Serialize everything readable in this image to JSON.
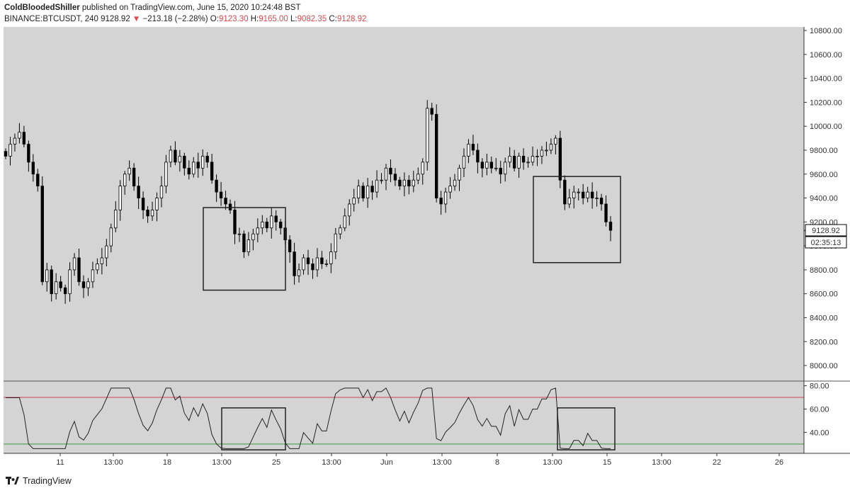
{
  "header": {
    "author": "ColdBloodedShiller",
    "published": "published on TradingView.com, June 15, 2020 10:24:48 BST",
    "symbol": "BINANCE:BTCUSDT, 240",
    "last": "9128.92",
    "change_arrow": "▼",
    "change": "−213.18 (−2.28%)",
    "open_label": "O:",
    "open": "9123.30",
    "high_label": "H:",
    "high": "9165.00",
    "low_label": "L:",
    "low": "9082.35",
    "close_label": "C:",
    "close": "9128.92"
  },
  "price_tag": {
    "price": "9128.92",
    "countdown": "02:35:13"
  },
  "footer": {
    "brand": "TradingView",
    "logo_icon": "tradingview-logo-icon"
  },
  "colors": {
    "background": "#d4d4d4",
    "candle": "#000000",
    "upper_band": "#d0405a",
    "lower_band": "#3a9a3a"
  },
  "chart_data": [
    {
      "type": "candlestick",
      "title": "BINANCE:BTCUSDT, 240",
      "y_ticks": [
        "8000.00",
        "8200.00",
        "8400.00",
        "8600.00",
        "8800.00",
        "9000.00",
        "9200.00",
        "9400.00",
        "9600.00",
        "9800.00",
        "10000.00",
        "10200.00",
        "10400.00",
        "10600.00",
        "10800.00"
      ],
      "ylim": [
        7870,
        10830
      ],
      "x_labels": [
        "11",
        "13:00",
        "18",
        "13:00",
        "25",
        "13:00",
        "Jun",
        "13:00",
        "8",
        "13:00",
        "15",
        "13:00",
        "22",
        "13:00",
        "26"
      ],
      "close_series": [
        9750,
        9850,
        9900,
        9950,
        9850,
        9700,
        9600,
        9500,
        8700,
        8800,
        8600,
        8700,
        8650,
        8600,
        8800,
        8900,
        8700,
        8650,
        8700,
        8800,
        8850,
        8900,
        9000,
        9150,
        9300,
        9500,
        9600,
        9650,
        9500,
        9400,
        9300,
        9250,
        9300,
        9400,
        9500,
        9700,
        9800,
        9700,
        9750,
        9650,
        9600,
        9700,
        9650,
        9750,
        9700,
        9550,
        9450,
        9400,
        9350,
        9300,
        9100,
        9100,
        8950,
        9050,
        9100,
        9150,
        9200,
        9150,
        9250,
        9200,
        9150,
        9050,
        8950,
        8750,
        8800,
        8900,
        8850,
        8800,
        8900,
        8850,
        8850,
        8950,
        9100,
        9150,
        9250,
        9350,
        9400,
        9500,
        9400,
        9500,
        9450,
        9550,
        9550,
        9650,
        9600,
        9550,
        9500,
        9550,
        9500,
        9550,
        9600,
        9700,
        10150,
        10100,
        9400,
        9350,
        9450,
        9500,
        9550,
        9650,
        9750,
        9850,
        9800,
        9700,
        9650,
        9700,
        9650,
        9650,
        9600,
        9700,
        9750,
        9650,
        9750,
        9700,
        9700,
        9750,
        9750,
        9800,
        9800,
        9850,
        9900,
        9550,
        9350,
        9400,
        9450,
        9450,
        9400,
        9450,
        9400,
        9400,
        9350,
        9200,
        9130
      ],
      "annotation_boxes": [
        {
          "label": "box-1",
          "x_range": [
            "~22 May 12:00",
            "~25 May 16:00"
          ],
          "y_range": [
            8630,
            9320
          ]
        },
        {
          "label": "box-2",
          "x_range": [
            "~12 Jun 00:00",
            "~15 Jun 04:00"
          ],
          "y_range": [
            8860,
            9580
          ]
        }
      ]
    },
    {
      "type": "line",
      "title": "",
      "y_ticks": [
        "40.00",
        "60.00",
        "80.00"
      ],
      "ylim": [
        22,
        84
      ],
      "bands": [
        30,
        70
      ],
      "annotation_boxes": [
        {
          "label": "box-3",
          "x_range": [
            "~22 May 12:00",
            "~25 May 16:00"
          ],
          "y_range": [
            25,
            61
          ]
        },
        {
          "label": "box-4",
          "x_range": [
            "~12 Jun 00:00",
            "~15 Jun 04:00"
          ],
          "y_range": [
            25,
            61
          ]
        }
      ]
    }
  ]
}
